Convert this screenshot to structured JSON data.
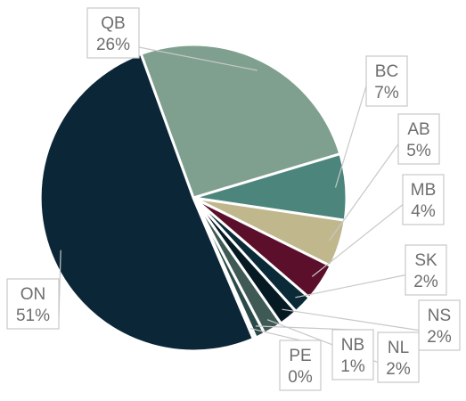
{
  "chart_data": {
    "type": "pie",
    "slices": [
      {
        "label": "QB",
        "value": 26,
        "value_label": "26%",
        "color": "#7f9f8f"
      },
      {
        "label": "BC",
        "value": 7,
        "value_label": "7%",
        "color": "#4c857c"
      },
      {
        "label": "AB",
        "value": 5,
        "value_label": "5%",
        "color": "#c0b78d"
      },
      {
        "label": "MB",
        "value": 4,
        "value_label": "4%",
        "color": "#5c0f2a"
      },
      {
        "label": "SK",
        "value": 2,
        "value_label": "2%",
        "color": "#0b2a38"
      },
      {
        "label": "NS",
        "value": 2,
        "value_label": "2%",
        "color": "#061a24"
      },
      {
        "label": "NL",
        "value": 2,
        "value_label": "2%",
        "color": "#3f5a55"
      },
      {
        "label": "NB",
        "value": 1,
        "value_label": "1%",
        "color": "#294a48"
      },
      {
        "label": "PE",
        "value": 0.3,
        "value_label": "0%",
        "color": "#8fae9f"
      },
      {
        "label": "ON",
        "value": 51,
        "value_label": "51%",
        "color": "#0b2637"
      }
    ]
  }
}
